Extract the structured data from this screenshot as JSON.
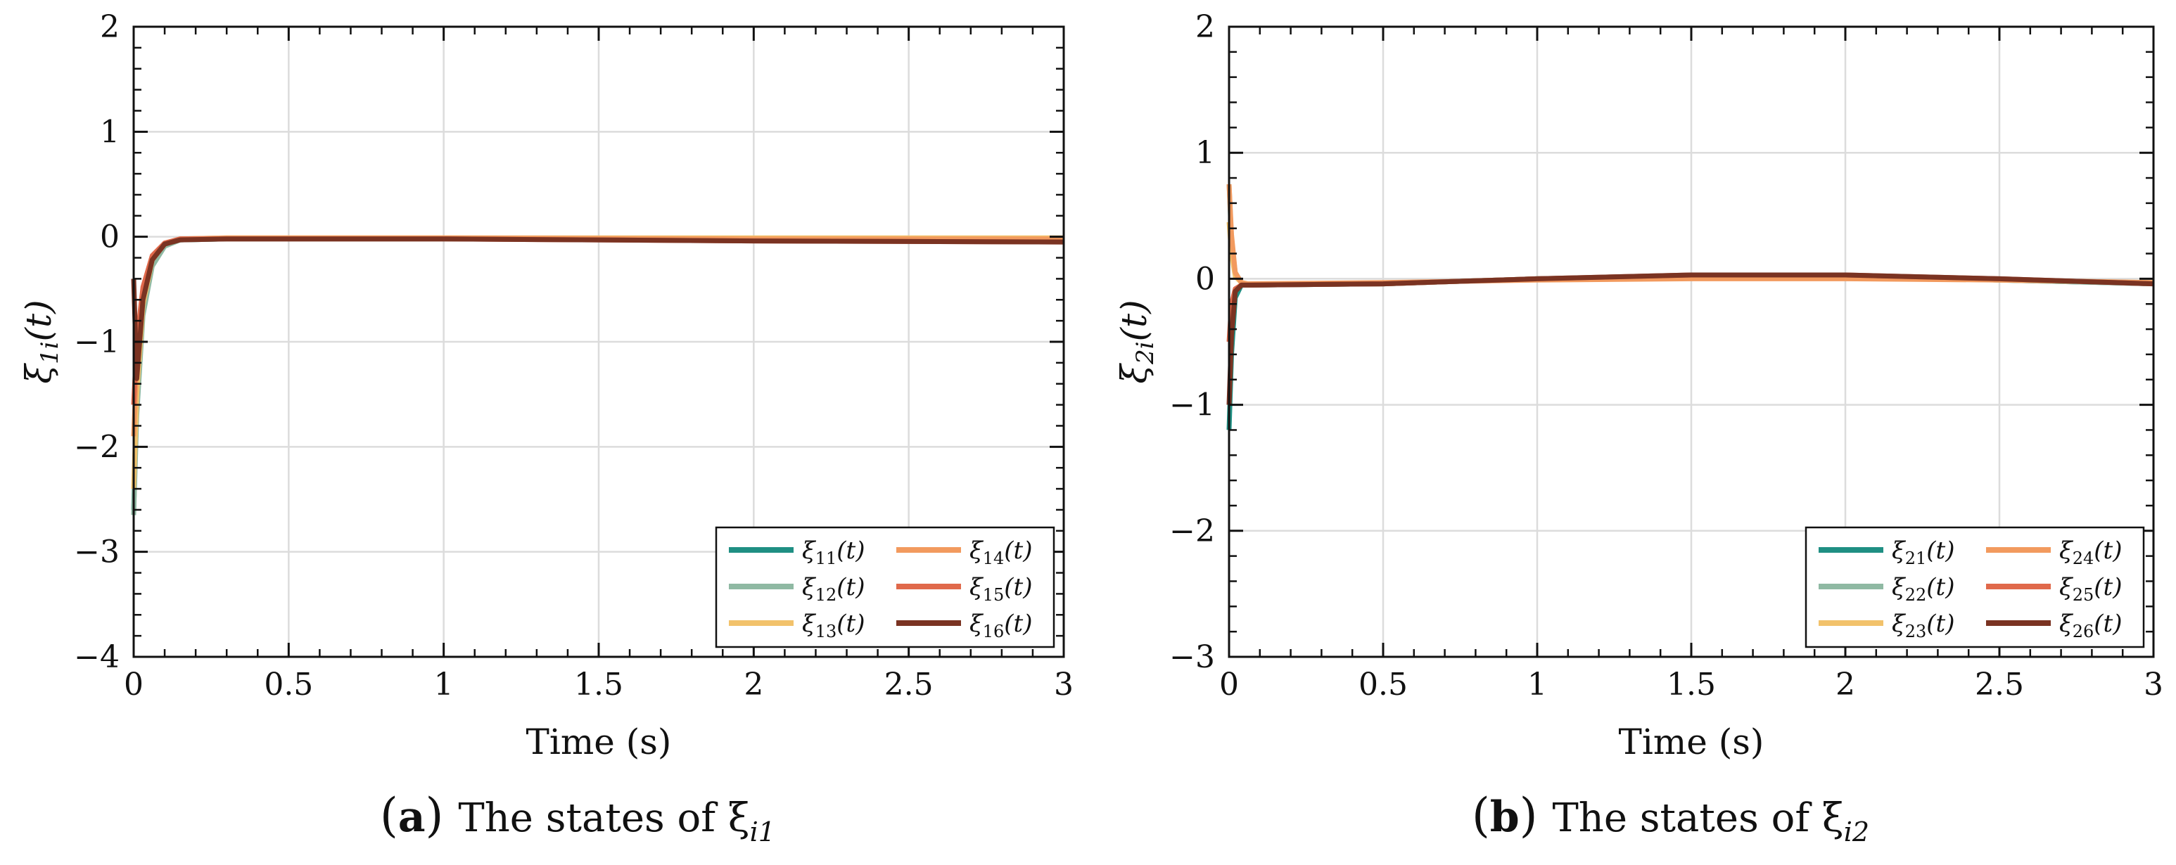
{
  "chart_data": [
    {
      "type": "line",
      "caption_letter": "a",
      "caption_text": "The states of ξ",
      "caption_sub": "i1",
      "xlabel": "Time (s)",
      "ylabel_base": "ξ",
      "ylabel_sub": "1i",
      "ylabel_suffix": "(t)",
      "xlim": [
        0,
        3
      ],
      "ylim": [
        -4,
        2
      ],
      "xticks": [
        0,
        0.5,
        1,
        1.5,
        2,
        2.5,
        3
      ],
      "xtick_labels": [
        "0",
        "0.5",
        "1",
        "1.5",
        "2",
        "2.5",
        "3"
      ],
      "yticks": [
        -4,
        -3,
        -2,
        -1,
        0,
        1,
        2
      ],
      "ytick_labels": [
        "−4",
        "−3",
        "−2",
        "−1",
        "0",
        "1",
        "2"
      ],
      "grid": true,
      "legend_position": "bottom-right",
      "series": [
        {
          "name": "ξ11(t)",
          "base": "ξ",
          "sub": "11",
          "suffix": "(t)",
          "color": "#1f8f83",
          "x": [
            0,
            0.01,
            0.03,
            0.06,
            0.1,
            0.15,
            0.3,
            1,
            2,
            3
          ],
          "y": [
            -2.6,
            -1.6,
            -0.7,
            -0.25,
            -0.08,
            -0.03,
            -0.02,
            -0.02,
            -0.03,
            -0.04
          ]
        },
        {
          "name": "ξ12(t)",
          "base": "ξ",
          "sub": "12",
          "suffix": "(t)",
          "color": "#8fb9a3",
          "x": [
            0,
            0.01,
            0.03,
            0.06,
            0.1,
            0.15,
            0.3,
            1,
            2,
            3
          ],
          "y": [
            -2.65,
            -1.7,
            -0.75,
            -0.28,
            -0.09,
            -0.03,
            -0.02,
            -0.02,
            -0.03,
            -0.04
          ]
        },
        {
          "name": "ξ13(t)",
          "base": "ξ",
          "sub": "13",
          "suffix": "(t)",
          "color": "#f2c26b",
          "x": [
            0,
            0.01,
            0.03,
            0.06,
            0.1,
            0.15,
            0.3,
            1,
            2,
            3
          ],
          "y": [
            -2.4,
            -1.5,
            -0.65,
            -0.22,
            -0.07,
            -0.02,
            -0.01,
            -0.01,
            -0.01,
            -0.01
          ]
        },
        {
          "name": "ξ14(t)",
          "base": "ξ",
          "sub": "14",
          "suffix": "(t)",
          "color": "#f29a5e",
          "x": [
            0,
            0.01,
            0.03,
            0.06,
            0.1,
            0.15,
            0.3,
            1,
            2,
            3
          ],
          "y": [
            -1.9,
            -1.2,
            -0.55,
            -0.2,
            -0.06,
            -0.02,
            -0.01,
            -0.01,
            -0.02,
            -0.02
          ]
        },
        {
          "name": "ξ15(t)",
          "base": "ξ",
          "sub": "15",
          "suffix": "(t)",
          "color": "#e0694b",
          "x": [
            0,
            0.01,
            0.03,
            0.06,
            0.1,
            0.15,
            0.3,
            1,
            2,
            3
          ],
          "y": [
            -1.6,
            -1.0,
            -0.48,
            -0.18,
            -0.06,
            -0.02,
            -0.02,
            -0.02,
            -0.04,
            -0.05
          ]
        },
        {
          "name": "ξ16(t)",
          "base": "ξ",
          "sub": "16",
          "suffix": "(t)",
          "color": "#7a3322",
          "x": [
            0,
            0.01,
            0.03,
            0.06,
            0.1,
            0.15,
            0.3,
            1,
            2,
            3
          ],
          "y": [
            -0.4,
            -1.35,
            -0.6,
            -0.22,
            -0.07,
            -0.03,
            -0.02,
            -0.02,
            -0.04,
            -0.05
          ]
        }
      ]
    },
    {
      "type": "line",
      "caption_letter": "b",
      "caption_text": "The states of ξ",
      "caption_sub": "i2",
      "xlabel": "Time (s)",
      "ylabel_base": "ξ",
      "ylabel_sub": "2i",
      "ylabel_suffix": "(t)",
      "xlim": [
        0,
        3
      ],
      "ylim": [
        -3,
        2
      ],
      "xticks": [
        0,
        0.5,
        1,
        1.5,
        2,
        2.5,
        3
      ],
      "xtick_labels": [
        "0",
        "0.5",
        "1",
        "1.5",
        "2",
        "2.5",
        "3"
      ],
      "yticks": [
        -3,
        -2,
        -1,
        0,
        1,
        2
      ],
      "ytick_labels": [
        "−3",
        "−2",
        "−1",
        "0",
        "1",
        "2"
      ],
      "grid": true,
      "legend_position": "bottom-right",
      "series": [
        {
          "name": "ξ21(t)",
          "base": "ξ",
          "sub": "21",
          "suffix": "(t)",
          "color": "#1f8f83",
          "x": [
            0,
            0.008,
            0.02,
            0.04,
            0.06,
            0.5,
            1,
            1.5,
            2,
            2.5,
            3
          ],
          "y": [
            -1.2,
            -0.6,
            -0.15,
            -0.05,
            -0.05,
            -0.04,
            0.0,
            0.02,
            0.02,
            -0.01,
            -0.04
          ]
        },
        {
          "name": "ξ22(t)",
          "base": "ξ",
          "sub": "22",
          "suffix": "(t)",
          "color": "#8fb9a3",
          "x": [
            0,
            0.008,
            0.02,
            0.04,
            0.06,
            0.5,
            1,
            1.5,
            2,
            2.5,
            3
          ],
          "y": [
            0.75,
            0.3,
            0.05,
            -0.03,
            -0.05,
            -0.04,
            0.0,
            0.02,
            0.02,
            -0.01,
            -0.04
          ]
        },
        {
          "name": "ξ23(t)",
          "base": "ξ",
          "sub": "23",
          "suffix": "(t)",
          "color": "#f2c26b",
          "x": [
            0,
            0.008,
            0.02,
            0.04,
            0.06,
            0.5,
            1,
            1.5,
            2,
            2.5,
            3
          ],
          "y": [
            0.45,
            0.2,
            0.02,
            -0.03,
            -0.04,
            -0.04,
            0.0,
            0.01,
            0.01,
            -0.01,
            -0.03
          ]
        },
        {
          "name": "ξ24(t)",
          "base": "ξ",
          "sub": "24",
          "suffix": "(t)",
          "color": "#f29a5e",
          "x": [
            0,
            0.008,
            0.02,
            0.04,
            0.06,
            0.5,
            1,
            1.5,
            2,
            2.5,
            3
          ],
          "y": [
            0.75,
            0.35,
            0.05,
            -0.03,
            -0.04,
            -0.03,
            -0.01,
            0.0,
            0.0,
            -0.01,
            -0.03
          ]
        },
        {
          "name": "ξ25(t)",
          "base": "ξ",
          "sub": "25",
          "suffix": "(t)",
          "color": "#e0694b",
          "x": [
            0,
            0.008,
            0.02,
            0.04,
            0.06,
            0.5,
            1,
            1.5,
            2,
            2.5,
            3
          ],
          "y": [
            -0.5,
            -0.2,
            -0.08,
            -0.05,
            -0.05,
            -0.04,
            0.0,
            0.03,
            0.03,
            0.0,
            -0.04
          ]
        },
        {
          "name": "ξ26(t)",
          "base": "ξ",
          "sub": "26",
          "suffix": "(t)",
          "color": "#7a3322",
          "x": [
            0,
            0.008,
            0.02,
            0.04,
            0.06,
            0.5,
            1,
            1.5,
            2,
            2.5,
            3
          ],
          "y": [
            -1.0,
            -0.45,
            -0.1,
            -0.05,
            -0.05,
            -0.04,
            0.0,
            0.03,
            0.03,
            0.0,
            -0.04
          ]
        }
      ]
    }
  ]
}
